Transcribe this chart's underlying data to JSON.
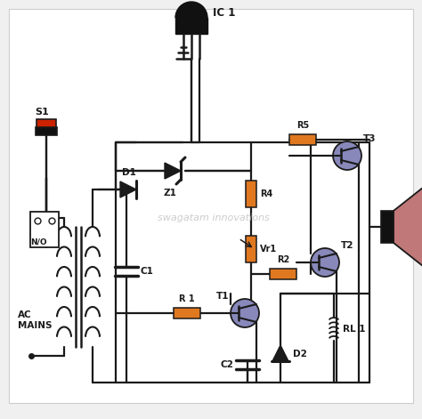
{
  "bg_color": "#f0f0f0",
  "line_color": "#1a1a1a",
  "orange_color": "#E07820",
  "purple_color": "#8888bb",
  "red_color": "#cc2200",
  "dark_color": "#111111",
  "watermark": "swagatam innovations",
  "watermark_color": "#bbbbbb",
  "components": {
    "S1": "S1",
    "D1": "D1",
    "Z1": "Z1",
    "C1": "C1",
    "R1": "R 1",
    "R2": "R2",
    "R4": "R4",
    "R5": "R5",
    "Vr1": "Vr1",
    "T1": "T1",
    "T2": "T2",
    "T3": "T3",
    "IC1": "IC 1",
    "C2": "C2",
    "D2": "D2",
    "RL1": "RL 1"
  }
}
